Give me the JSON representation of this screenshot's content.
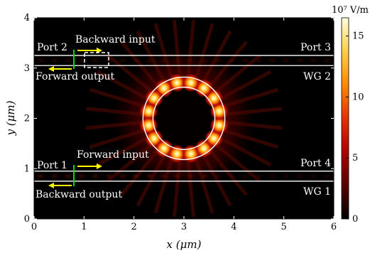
{
  "chart_data": {
    "type": "heatmap",
    "title": "",
    "xlabel": "x (μm)",
    "ylabel": "y (μm)",
    "xlim": [
      0,
      6
    ],
    "ylim": [
      0,
      4
    ],
    "x_ticks": [
      "0",
      "1",
      "2",
      "3",
      "4",
      "5",
      "6"
    ],
    "y_ticks": [
      "0",
      "1",
      "2",
      "3",
      "4"
    ],
    "colorbar": {
      "unit_label": "10⁷ V/m",
      "range": [
        0,
        16.5
      ],
      "ticks": [
        "0",
        "5",
        "10",
        "15"
      ],
      "colormap": [
        "#000000",
        "#5a0000",
        "#b40000",
        "#e83000",
        "#ff8a00",
        "#ffd24a",
        "#ffffdc"
      ]
    },
    "waveguides": [
      {
        "name": "WG 1",
        "y_lower": 0.75,
        "y_upper": 0.95
      },
      {
        "name": "WG 2",
        "y_lower": 3.05,
        "y_upper": 3.25
      }
    ],
    "ring": {
      "center_x": 3.0,
      "center_y": 2.0,
      "inner_radius": 0.62,
      "outer_radius": 0.82,
      "hotspots": 16
    },
    "annotations": {
      "port1": "Port 1",
      "port2": "Port 2",
      "port3": "Port 3",
      "port4": "Port 4",
      "wg1": "WG 1",
      "wg2": "WG 2",
      "forward_input": "Forward input",
      "backward_input": "Backward input",
      "forward_output": "Forward output",
      "backward_output": "Backward output"
    },
    "colors": {
      "arrow": "#ffff00",
      "source_line": "#00dd00",
      "waveguide_edge": "#ffffff"
    }
  }
}
